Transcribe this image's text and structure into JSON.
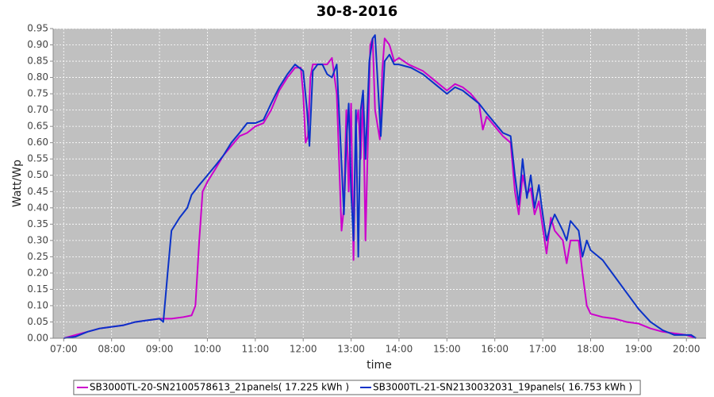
{
  "chart_data": {
    "type": "line",
    "title": "30-8-2016",
    "x_label": "time",
    "y_label": "Watt/Wp",
    "xlim": [
      6.78,
      20.41
    ],
    "ylim": [
      0,
      0.95
    ],
    "xticks": [
      {
        "value": 7,
        "label": "07:00"
      },
      {
        "value": 8,
        "label": "08:00"
      },
      {
        "value": 9,
        "label": "09:00"
      },
      {
        "value": 10,
        "label": "10:00"
      },
      {
        "value": 11,
        "label": "11:00"
      },
      {
        "value": 12,
        "label": "12:00"
      },
      {
        "value": 13,
        "label": "13:00"
      },
      {
        "value": 14,
        "label": "14:00"
      },
      {
        "value": 15,
        "label": "15:00"
      },
      {
        "value": 16,
        "label": "16:00"
      },
      {
        "value": 17,
        "label": "17:00"
      },
      {
        "value": 18,
        "label": "18:00"
      },
      {
        "value": 19,
        "label": "19:00"
      },
      {
        "value": 20,
        "label": "20:00"
      }
    ],
    "yticks": [
      {
        "value": 0,
        "label": "0.00"
      },
      0.05,
      {
        "value": 0.1,
        "label": "0.10"
      },
      0.15,
      {
        "value": 0.2,
        "label": "0.20"
      },
      0.25,
      {
        "value": 0.3,
        "label": "0.30"
      },
      0.35,
      {
        "value": 0.4,
        "label": "0.40"
      },
      0.45,
      {
        "value": 0.5,
        "label": "0.50"
      },
      0.55,
      {
        "value": 0.6,
        "label": "0.60"
      },
      0.65,
      {
        "value": 0.7,
        "label": "0.70"
      },
      0.75,
      {
        "value": 0.8,
        "label": "0.80"
      },
      0.85,
      {
        "value": 0.9,
        "label": "0.90"
      },
      0.95
    ],
    "grid": true,
    "series": [
      {
        "name": "SB3000TL-20-SN2100578613_21panels( 17.225 kWh )",
        "color": "#cc00cc",
        "x": [
          7.0,
          7.25,
          7.5,
          7.75,
          8.0,
          8.25,
          8.5,
          8.75,
          9.0,
          9.25,
          9.5,
          9.67,
          9.75,
          9.83,
          9.9,
          10.0,
          10.17,
          10.33,
          10.5,
          10.67,
          10.83,
          11.0,
          11.17,
          11.33,
          11.5,
          11.67,
          11.83,
          11.95,
          12.0,
          12.05,
          12.1,
          12.15,
          12.2,
          12.3,
          12.4,
          12.5,
          12.6,
          12.7,
          12.8,
          12.85,
          12.9,
          12.95,
          13.0,
          13.05,
          13.1,
          13.15,
          13.2,
          13.25,
          13.3,
          13.4,
          13.45,
          13.5,
          13.6,
          13.65,
          13.7,
          13.8,
          13.9,
          14.0,
          14.2,
          14.5,
          14.75,
          15.0,
          15.17,
          15.33,
          15.5,
          15.67,
          15.75,
          15.83,
          16.0,
          16.17,
          16.33,
          16.42,
          16.5,
          16.58,
          16.67,
          16.75,
          16.83,
          16.92,
          17.0,
          17.08,
          17.17,
          17.25,
          17.42,
          17.5,
          17.58,
          17.75,
          17.83,
          17.92,
          18.0,
          18.25,
          18.5,
          18.75,
          19.0,
          19.25,
          19.5,
          19.75,
          20.0,
          20.1,
          20.2
        ],
        "values": [
          0,
          0.01,
          0.02,
          0.03,
          0.035,
          0.04,
          0.05,
          0.055,
          0.06,
          0.06,
          0.065,
          0.07,
          0.1,
          0.3,
          0.45,
          0.48,
          0.52,
          0.56,
          0.59,
          0.62,
          0.63,
          0.65,
          0.66,
          0.7,
          0.76,
          0.8,
          0.83,
          0.83,
          0.75,
          0.6,
          0.62,
          0.8,
          0.84,
          0.84,
          0.84,
          0.84,
          0.86,
          0.75,
          0.33,
          0.4,
          0.7,
          0.45,
          0.72,
          0.24,
          0.65,
          0.7,
          0.55,
          0.75,
          0.3,
          0.9,
          0.92,
          0.7,
          0.61,
          0.82,
          0.92,
          0.9,
          0.85,
          0.86,
          0.84,
          0.82,
          0.79,
          0.76,
          0.78,
          0.77,
          0.75,
          0.72,
          0.64,
          0.68,
          0.65,
          0.62,
          0.6,
          0.45,
          0.38,
          0.5,
          0.44,
          0.46,
          0.38,
          0.42,
          0.34,
          0.26,
          0.37,
          0.33,
          0.3,
          0.23,
          0.3,
          0.3,
          0.2,
          0.1,
          0.075,
          0.065,
          0.06,
          0.05,
          0.045,
          0.03,
          0.02,
          0.015,
          0.01,
          0.005,
          0
        ]
      },
      {
        "name": "SB3000TL-21-SN2130032031_19panels( 16.753 kWh )",
        "color": "#0a32c8",
        "x": [
          7.0,
          7.25,
          7.5,
          7.75,
          8.0,
          8.25,
          8.5,
          8.75,
          9.0,
          9.08,
          9.17,
          9.25,
          9.42,
          9.58,
          9.67,
          9.83,
          10.0,
          10.17,
          10.33,
          10.5,
          10.67,
          10.83,
          11.0,
          11.17,
          11.33,
          11.5,
          11.67,
          11.83,
          12.0,
          12.08,
          12.13,
          12.2,
          12.3,
          12.4,
          12.5,
          12.6,
          12.7,
          12.78,
          12.85,
          12.9,
          12.95,
          13.0,
          13.05,
          13.1,
          13.15,
          13.2,
          13.25,
          13.3,
          13.38,
          13.45,
          13.5,
          13.55,
          13.62,
          13.7,
          13.8,
          13.9,
          14.0,
          14.25,
          14.5,
          14.75,
          15.0,
          15.17,
          15.33,
          15.5,
          15.67,
          15.83,
          16.0,
          16.17,
          16.33,
          16.42,
          16.5,
          16.58,
          16.67,
          16.75,
          16.83,
          16.92,
          17.0,
          17.08,
          17.17,
          17.25,
          17.42,
          17.5,
          17.58,
          17.75,
          17.83,
          17.92,
          18.0,
          18.25,
          18.5,
          18.75,
          19.0,
          19.25,
          19.5,
          19.75,
          20.0,
          20.1,
          20.2
        ],
        "values": [
          0,
          0.005,
          0.02,
          0.03,
          0.035,
          0.04,
          0.05,
          0.055,
          0.06,
          0.05,
          0.2,
          0.33,
          0.37,
          0.4,
          0.44,
          0.47,
          0.5,
          0.53,
          0.56,
          0.6,
          0.63,
          0.66,
          0.66,
          0.67,
          0.72,
          0.77,
          0.81,
          0.84,
          0.82,
          0.7,
          0.59,
          0.82,
          0.84,
          0.84,
          0.81,
          0.8,
          0.84,
          0.6,
          0.38,
          0.6,
          0.72,
          0.45,
          0.3,
          0.7,
          0.25,
          0.7,
          0.76,
          0.55,
          0.85,
          0.92,
          0.93,
          0.8,
          0.62,
          0.85,
          0.87,
          0.84,
          0.84,
          0.83,
          0.81,
          0.78,
          0.75,
          0.77,
          0.76,
          0.74,
          0.72,
          0.69,
          0.66,
          0.63,
          0.62,
          0.5,
          0.41,
          0.55,
          0.43,
          0.5,
          0.4,
          0.47,
          0.38,
          0.3,
          0.35,
          0.38,
          0.33,
          0.3,
          0.36,
          0.33,
          0.25,
          0.3,
          0.27,
          0.24,
          0.19,
          0.14,
          0.09,
          0.05,
          0.025,
          0.01,
          0.01,
          0.01,
          0
        ]
      }
    ]
  }
}
